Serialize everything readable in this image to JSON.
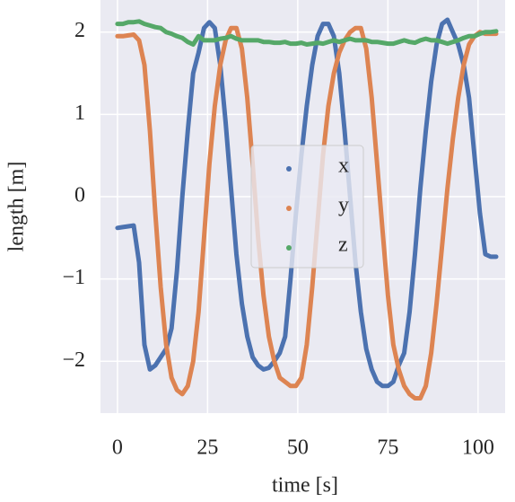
{
  "chart_data": {
    "type": "scatter",
    "x_label": "time [s]",
    "y_label": "length [m]",
    "x": [
      0,
      1.5,
      3,
      4.5,
      6,
      7.5,
      9,
      10.5,
      12,
      13.5,
      15,
      16.5,
      18,
      19.5,
      21,
      22.5,
      24,
      25.5,
      27,
      28.5,
      30,
      31.5,
      33,
      34.5,
      36,
      37.5,
      39,
      40.5,
      42,
      43.5,
      45,
      46.5,
      48,
      49.5,
      51,
      52.5,
      54,
      55.5,
      57,
      58.5,
      60,
      61.5,
      63,
      64.5,
      66,
      67.5,
      69,
      70.5,
      72,
      73.5,
      75,
      76.5,
      78,
      79.5,
      81,
      82.5,
      84,
      85.5,
      87,
      88.5,
      90,
      91.5,
      93,
      94.5,
      96,
      97.5,
      99,
      100.5,
      102,
      103.5,
      105
    ],
    "series": [
      {
        "name": "x",
        "color": "#4c72b0",
        "values": [
          -0.38,
          -0.37,
          -0.36,
          -0.35,
          -0.8,
          -1.8,
          -2.1,
          -2.05,
          -1.95,
          -1.85,
          -1.6,
          -0.9,
          0.0,
          0.8,
          1.5,
          1.75,
          2.05,
          2.12,
          2.05,
          1.6,
          0.9,
          0.1,
          -0.7,
          -1.3,
          -1.7,
          -1.95,
          -2.05,
          -2.1,
          -2.08,
          -2.0,
          -1.9,
          -1.7,
          -1.0,
          -0.2,
          0.5,
          1.1,
          1.6,
          1.95,
          2.1,
          2.1,
          1.95,
          1.5,
          0.8,
          0.0,
          -0.8,
          -1.4,
          -1.85,
          -2.1,
          -2.25,
          -2.3,
          -2.3,
          -2.25,
          -2.05,
          -1.9,
          -1.4,
          -0.7,
          0.1,
          0.8,
          1.4,
          1.85,
          2.1,
          2.15,
          2.0,
          1.85,
          1.6,
          1.2,
          0.5,
          -0.2,
          -0.7,
          -0.73,
          -0.73
        ]
      },
      {
        "name": "y",
        "color": "#dd8452",
        "values": [
          1.95,
          1.95,
          1.96,
          1.97,
          1.9,
          1.6,
          0.8,
          -0.2,
          -1.1,
          -1.8,
          -2.2,
          -2.35,
          -2.4,
          -2.3,
          -2.0,
          -1.4,
          -0.5,
          0.4,
          1.1,
          1.6,
          1.9,
          2.05,
          2.05,
          1.8,
          1.2,
          0.4,
          -0.5,
          -1.2,
          -1.7,
          -2.0,
          -2.2,
          -2.25,
          -2.3,
          -2.3,
          -2.2,
          -1.8,
          -1.1,
          -0.3,
          0.5,
          1.1,
          1.5,
          1.75,
          1.9,
          2.0,
          2.05,
          2.05,
          1.8,
          1.2,
          0.4,
          -0.4,
          -1.2,
          -1.8,
          -2.1,
          -2.3,
          -2.4,
          -2.45,
          -2.45,
          -2.3,
          -1.9,
          -1.3,
          -0.6,
          0.1,
          0.7,
          1.2,
          1.6,
          1.85,
          1.95,
          2.0,
          1.98,
          1.98,
          1.98
        ]
      },
      {
        "name": "z",
        "color": "#55a868",
        "values": [
          2.1,
          2.1,
          2.12,
          2.12,
          2.13,
          2.1,
          2.08,
          2.06,
          2.05,
          2.0,
          1.98,
          1.95,
          1.93,
          1.88,
          1.85,
          1.95,
          1.9,
          1.9,
          1.9,
          1.92,
          1.93,
          1.95,
          1.92,
          1.9,
          1.9,
          1.9,
          1.9,
          1.88,
          1.88,
          1.87,
          1.87,
          1.88,
          1.86,
          1.86,
          1.87,
          1.85,
          1.86,
          1.87,
          1.86,
          1.88,
          1.9,
          1.88,
          1.9,
          1.92,
          1.9,
          1.9,
          1.9,
          1.88,
          1.88,
          1.87,
          1.86,
          1.86,
          1.88,
          1.9,
          1.88,
          1.87,
          1.9,
          1.92,
          1.9,
          1.9,
          1.88,
          1.86,
          1.88,
          1.9,
          1.93,
          1.95,
          1.95,
          1.98,
          2.0,
          2.0,
          2.01
        ]
      }
    ],
    "xlim": [
      -4.7,
      107.5
    ],
    "ylim": [
      -2.63,
      2.39
    ],
    "xticks": [
      0,
      25,
      50,
      75,
      100
    ],
    "yticks": [
      {
        "value": -2,
        "label": "−2"
      },
      {
        "value": -1,
        "label": "−1"
      },
      0,
      1,
      2
    ],
    "grid": true,
    "legend": "center"
  }
}
